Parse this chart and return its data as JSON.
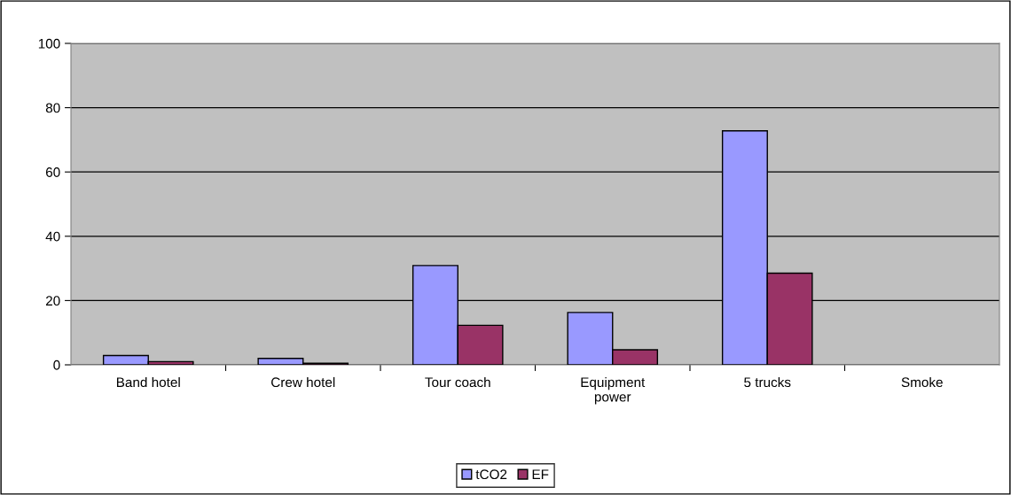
{
  "chart_data": {
    "type": "bar",
    "categories": [
      "Band hotel",
      "Crew hotel",
      "Tour coach",
      "Equipment\npower",
      "5 trucks",
      "Smoke"
    ],
    "series": [
      {
        "name": "tCO2",
        "color": "#9999ff",
        "values": [
          2.9,
          2.0,
          30.9,
          16.3,
          72.8,
          0
        ]
      },
      {
        "name": "EF",
        "color": "#993366",
        "values": [
          1.0,
          0.5,
          12.3,
          4.7,
          28.5,
          0
        ]
      }
    ],
    "ylim": [
      0,
      100
    ],
    "yticks": [
      0,
      20,
      40,
      60,
      80,
      100
    ],
    "grid": "y",
    "legend": "bottom"
  }
}
